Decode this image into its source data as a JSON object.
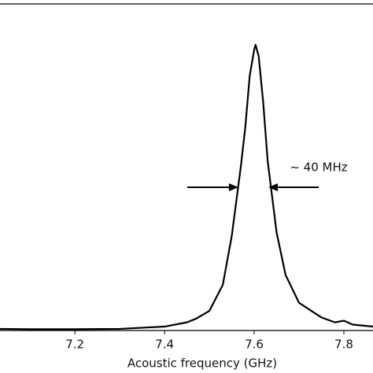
{
  "chart_data": {
    "type": "line",
    "x_label": "Acoustic frequency (GHz)",
    "annotation": "~ 40 MHz",
    "x": [
      7.03,
      7.1,
      7.2,
      7.3,
      7.4,
      7.45,
      7.47,
      7.5,
      7.53,
      7.55,
      7.57,
      7.58,
      7.59,
      7.6,
      7.603,
      7.61,
      7.62,
      7.63,
      7.65,
      7.67,
      7.7,
      7.75,
      7.78,
      7.8,
      7.82,
      7.865
    ],
    "values": [
      0.005,
      0.004,
      0.004,
      0.005,
      0.012,
      0.025,
      0.036,
      0.06,
      0.14,
      0.29,
      0.5,
      0.62,
      0.78,
      0.86,
      0.875,
      0.84,
      0.7,
      0.52,
      0.3,
      0.17,
      0.085,
      0.04,
      0.025,
      0.03,
      0.018,
      0.012
    ],
    "color": "#000000",
    "xlim": [
      7.033,
      7.865
    ],
    "ylim": [
      0,
      1
    ],
    "xticks": [
      7.2,
      7.4,
      7.6,
      7.8
    ]
  }
}
